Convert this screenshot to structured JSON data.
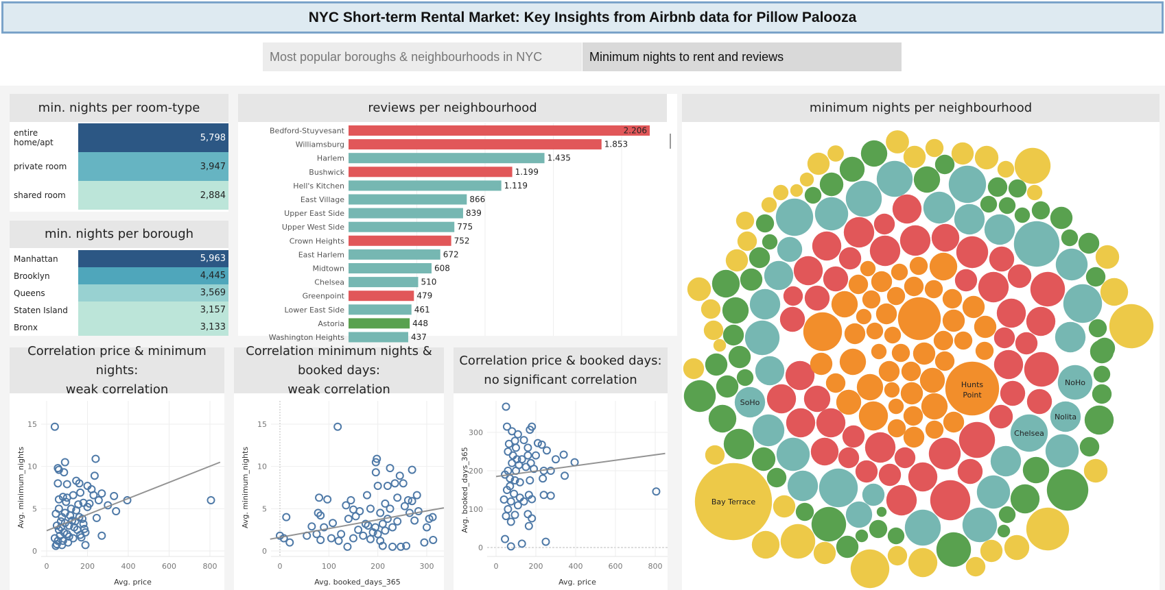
{
  "title": "NYC Short-term Rental Market: Key Insights from Airbnb data for Pillow Palooza",
  "tabs": [
    {
      "label": "Most popular boroughs & neighbourhoods in NYC",
      "active": false
    },
    {
      "label": "Minimum nights to rent and reviews",
      "active": true
    }
  ],
  "colors": {
    "brooklyn_red": "#e15759",
    "teal": "#76b7b2",
    "green": "#59a14f",
    "orange": "#f28e2b",
    "yellow": "#edc948",
    "point_blue": "#4e79a7",
    "trend_gray": "#8c8c8c"
  },
  "room_type": {
    "title": "min. nights per room-type",
    "rows": [
      {
        "label": "entire home/apt",
        "value": "5,798",
        "color": "#2c5784",
        "text": "#fff"
      },
      {
        "label": "private room",
        "value": "3,947",
        "color": "#66b4c2",
        "text": "#222"
      },
      {
        "label": "shared room",
        "value": "2,884",
        "color": "#bce5d9",
        "text": "#222"
      }
    ]
  },
  "borough": {
    "title": "min. nights per borough",
    "rows": [
      {
        "label": "Manhattan",
        "value": "5,963",
        "color": "#2c5784",
        "text": "#fff"
      },
      {
        "label": "Brooklyn",
        "value": "4,445",
        "color": "#4fa6bb",
        "text": "#222"
      },
      {
        "label": "Queens",
        "value": "3,569",
        "color": "#98d1d1",
        "text": "#222"
      },
      {
        "label": "Staten Island",
        "value": "3,157",
        "color": "#bce5d9",
        "text": "#222"
      },
      {
        "label": "Bronx",
        "value": "3,133",
        "color": "#bce5d9",
        "text": "#222"
      }
    ]
  },
  "chart_data": [
    {
      "type": "bar",
      "title": "reviews per neighbourhood",
      "orientation": "horizontal",
      "grid": true,
      "categories": [
        "Bedford-Stuyvesant",
        "Williamsburg",
        "Harlem",
        "Bushwick",
        "Hell's Kitchen",
        "East Village",
        "Upper East Side",
        "Upper West Side",
        "Crown Heights",
        "East Harlem",
        "Midtown",
        "Chelsea",
        "Greenpoint",
        "Lower East Side",
        "Astoria",
        "Washington Heights"
      ],
      "values": [
        2206,
        1853,
        1435,
        1199,
        1119,
        866,
        839,
        775,
        752,
        672,
        608,
        510,
        479,
        461,
        448,
        437
      ],
      "labels": [
        "2.206",
        "1.853",
        "1.435",
        "1.199",
        "1.119",
        "866",
        "839",
        "775",
        "752",
        "672",
        "608",
        "510",
        "479",
        "461",
        "448",
        "437"
      ],
      "colors": [
        "#e15759",
        "#e15759",
        "#76b7b2",
        "#e15759",
        "#76b7b2",
        "#76b7b2",
        "#76b7b2",
        "#76b7b2",
        "#e15759",
        "#76b7b2",
        "#76b7b2",
        "#76b7b2",
        "#e15759",
        "#76b7b2",
        "#59a14f",
        "#76b7b2"
      ]
    },
    {
      "type": "scatter",
      "title": "Correlation price & minimum nights:\nweak correlation",
      "xlabel": "Avg. price",
      "ylabel": "Avg. minimum_nights",
      "xlim": [
        0,
        850
      ],
      "ylim": [
        0,
        15.5
      ],
      "x_ticks": [
        "0",
        "200",
        "400",
        "600",
        "800"
      ],
      "y_ticks": [
        "0",
        "5",
        "10",
        "15"
      ],
      "trend": [
        [
          0,
          2.4
        ],
        [
          850,
          10.5
        ]
      ],
      "points": [
        [
          40,
          14.7
        ],
        [
          240,
          10.9
        ],
        [
          90,
          10.5
        ],
        [
          55,
          9.8
        ],
        [
          60,
          9.6
        ],
        [
          85,
          9.3
        ],
        [
          235,
          8.9
        ],
        [
          55,
          8.0
        ],
        [
          100,
          7.9
        ],
        [
          145,
          8.3
        ],
        [
          160,
          8.0
        ],
        [
          200,
          7.7
        ],
        [
          220,
          7.3
        ],
        [
          270,
          6.8
        ],
        [
          330,
          6.5
        ],
        [
          395,
          6.0
        ],
        [
          805,
          6.0
        ],
        [
          300,
          5.4
        ],
        [
          340,
          4.7
        ],
        [
          245,
          3.9
        ],
        [
          270,
          1.8
        ],
        [
          190,
          0.7
        ],
        [
          45,
          4.4
        ],
        [
          60,
          6.1
        ],
        [
          80,
          6.4
        ],
        [
          100,
          6.3
        ],
        [
          130,
          6.6
        ],
        [
          165,
          6.9
        ],
        [
          180,
          5.7
        ],
        [
          210,
          5.6
        ],
        [
          255,
          6.0
        ],
        [
          230,
          6.6
        ],
        [
          40,
          1.5
        ],
        [
          50,
          0.8
        ],
        [
          60,
          2.5
        ],
        [
          70,
          3.5
        ],
        [
          80,
          1.2
        ],
        [
          90,
          4.5
        ],
        [
          100,
          2.0
        ],
        [
          110,
          3.0
        ],
        [
          120,
          5.0
        ],
        [
          130,
          1.5
        ],
        [
          140,
          3.5
        ],
        [
          150,
          2.5
        ],
        [
          160,
          4.0
        ],
        [
          170,
          1.6
        ],
        [
          180,
          3.2
        ],
        [
          190,
          2.2
        ],
        [
          200,
          5.2
        ],
        [
          60,
          5.0
        ],
        [
          75,
          0.7
        ],
        [
          95,
          5.8
        ],
        [
          115,
          4.2
        ],
        [
          135,
          2.8
        ],
        [
          155,
          5.5
        ],
        [
          175,
          3.8
        ],
        [
          50,
          3.0
        ],
        [
          65,
          1.8
        ],
        [
          85,
          2.2
        ],
        [
          105,
          1.0
        ],
        [
          125,
          3.6
        ],
        [
          145,
          4.8
        ],
        [
          165,
          1.9
        ],
        [
          185,
          2.6
        ],
        [
          45,
          0.6
        ],
        [
          70,
          2.8
        ],
        [
          90,
          3.3
        ],
        [
          110,
          1.7
        ],
        [
          55,
          1.2
        ],
        [
          75,
          4.0
        ]
      ]
    },
    {
      "type": "scatter",
      "title": "Correlation  minimum nights & booked days:\nweak correlation",
      "xlabel": "Avg. booked_days_365",
      "ylabel": "Avg. minimum_nights",
      "xlim": [
        -20,
        335
      ],
      "ylim": [
        0,
        15.5
      ],
      "x_ticks": [
        "0",
        "100",
        "200",
        "300"
      ],
      "y_ticks": [
        "0",
        "5",
        "10",
        "15"
      ],
      "trend": [
        [
          -20,
          1.4
        ],
        [
          335,
          5.1
        ]
      ],
      "points": [
        [
          118,
          14.7
        ],
        [
          198,
          10.9
        ],
        [
          196,
          10.5
        ],
        [
          225,
          9.8
        ],
        [
          270,
          9.6
        ],
        [
          196,
          9.3
        ],
        [
          245,
          8.9
        ],
        [
          200,
          7.7
        ],
        [
          220,
          7.7
        ],
        [
          235,
          8.0
        ],
        [
          252,
          8.0
        ],
        [
          80,
          6.3
        ],
        [
          97,
          6.1
        ],
        [
          145,
          6.0
        ],
        [
          178,
          6.6
        ],
        [
          280,
          6.6
        ],
        [
          13,
          4.0
        ],
        [
          0,
          1.8
        ],
        [
          8,
          1.5
        ],
        [
          20,
          1.0
        ],
        [
          55,
          1.8
        ],
        [
          65,
          2.9
        ],
        [
          75,
          2.0
        ],
        [
          78,
          4.5
        ],
        [
          83,
          4.2
        ],
        [
          83,
          1.3
        ],
        [
          90,
          2.8
        ],
        [
          105,
          1.5
        ],
        [
          108,
          3.3
        ],
        [
          125,
          2.0
        ],
        [
          135,
          5.4
        ],
        [
          138,
          0.5
        ],
        [
          140,
          3.8
        ],
        [
          150,
          4.9
        ],
        [
          155,
          4.1
        ],
        [
          163,
          4.7
        ],
        [
          175,
          3.2
        ],
        [
          185,
          5.0
        ],
        [
          190,
          2.2
        ],
        [
          205,
          4.5
        ],
        [
          210,
          0.6
        ],
        [
          215,
          5.6
        ],
        [
          230,
          0.5
        ],
        [
          240,
          3.5
        ],
        [
          247,
          0.5
        ],
        [
          258,
          0.6
        ],
        [
          262,
          6.0
        ],
        [
          270,
          5.9
        ],
        [
          275,
          3.6
        ],
        [
          283,
          4.7
        ],
        [
          295,
          1.0
        ],
        [
          300,
          2.8
        ],
        [
          305,
          3.8
        ],
        [
          312,
          4.0
        ],
        [
          313,
          1.3
        ],
        [
          160,
          2.5
        ],
        [
          170,
          1.8
        ],
        [
          180,
          3.0
        ],
        [
          195,
          2.8
        ],
        [
          200,
          2.0
        ],
        [
          220,
          3.8
        ],
        [
          230,
          2.8
        ],
        [
          150,
          1.5
        ],
        [
          120,
          1.2
        ],
        [
          210,
          3.2
        ],
        [
          225,
          5.0
        ],
        [
          240,
          6.3
        ],
        [
          255,
          5.3
        ],
        [
          265,
          4.5
        ],
        [
          185,
          1.4
        ],
        [
          205,
          1.2
        ],
        [
          215,
          2.4
        ]
      ]
    },
    {
      "type": "scatter",
      "title": "Correlation price & booked days:\nno significant correlation",
      "xlabel": "Avg. price",
      "ylabel": "Avg. booked_days_365",
      "xlim": [
        0,
        850
      ],
      "ylim": [
        -20,
        375
      ],
      "x_ticks": [
        "0",
        "200",
        "400",
        "600",
        "800"
      ],
      "y_ticks": [
        "0",
        "100",
        "200",
        "300"
      ],
      "trend": [
        [
          0,
          185
        ],
        [
          850,
          245
        ]
      ],
      "points": [
        [
          50,
          367
        ],
        [
          55,
          315
        ],
        [
          180,
          315
        ],
        [
          170,
          307
        ],
        [
          80,
          303
        ],
        [
          95,
          278
        ],
        [
          110,
          295
        ],
        [
          140,
          280
        ],
        [
          210,
          272
        ],
        [
          230,
          268
        ],
        [
          255,
          253
        ],
        [
          160,
          260
        ],
        [
          300,
          230
        ],
        [
          340,
          242
        ],
        [
          395,
          222
        ],
        [
          805,
          146
        ],
        [
          345,
          187
        ],
        [
          275,
          200
        ],
        [
          240,
          200
        ],
        [
          235,
          180
        ],
        [
          240,
          137
        ],
        [
          275,
          135
        ],
        [
          165,
          137
        ],
        [
          180,
          126
        ],
        [
          160,
          87
        ],
        [
          180,
          76
        ],
        [
          165,
          56
        ],
        [
          75,
          67
        ],
        [
          45,
          22
        ],
        [
          75,
          3
        ],
        [
          130,
          10
        ],
        [
          250,
          15
        ],
        [
          40,
          125
        ],
        [
          50,
          82
        ],
        [
          95,
          85
        ],
        [
          60,
          100
        ],
        [
          110,
          110
        ],
        [
          90,
          140
        ],
        [
          70,
          160
        ],
        [
          120,
          170
        ],
        [
          100,
          200
        ],
        [
          80,
          220
        ],
        [
          130,
          230
        ],
        [
          60,
          250
        ],
        [
          150,
          210
        ],
        [
          190,
          205
        ],
        [
          170,
          175
        ],
        [
          200,
          240
        ],
        [
          140,
          120
        ],
        [
          120,
          130
        ],
        [
          70,
          180
        ],
        [
          60,
          200
        ],
        [
          85,
          240
        ],
        [
          100,
          260
        ],
        [
          65,
          270
        ],
        [
          160,
          240
        ],
        [
          175,
          220
        ],
        [
          55,
          150
        ],
        [
          75,
          120
        ],
        [
          95,
          175
        ],
        [
          115,
          215
        ],
        [
          45,
          190
        ],
        [
          105,
          230
        ]
      ]
    },
    {
      "type": "bubble",
      "title": "minimum nights per neighbourhood",
      "labels": [
        "Bay Terrace",
        "Hunts Point",
        "SoHo",
        "NoHo",
        "Nolita",
        "Chelsea"
      ]
    }
  ]
}
